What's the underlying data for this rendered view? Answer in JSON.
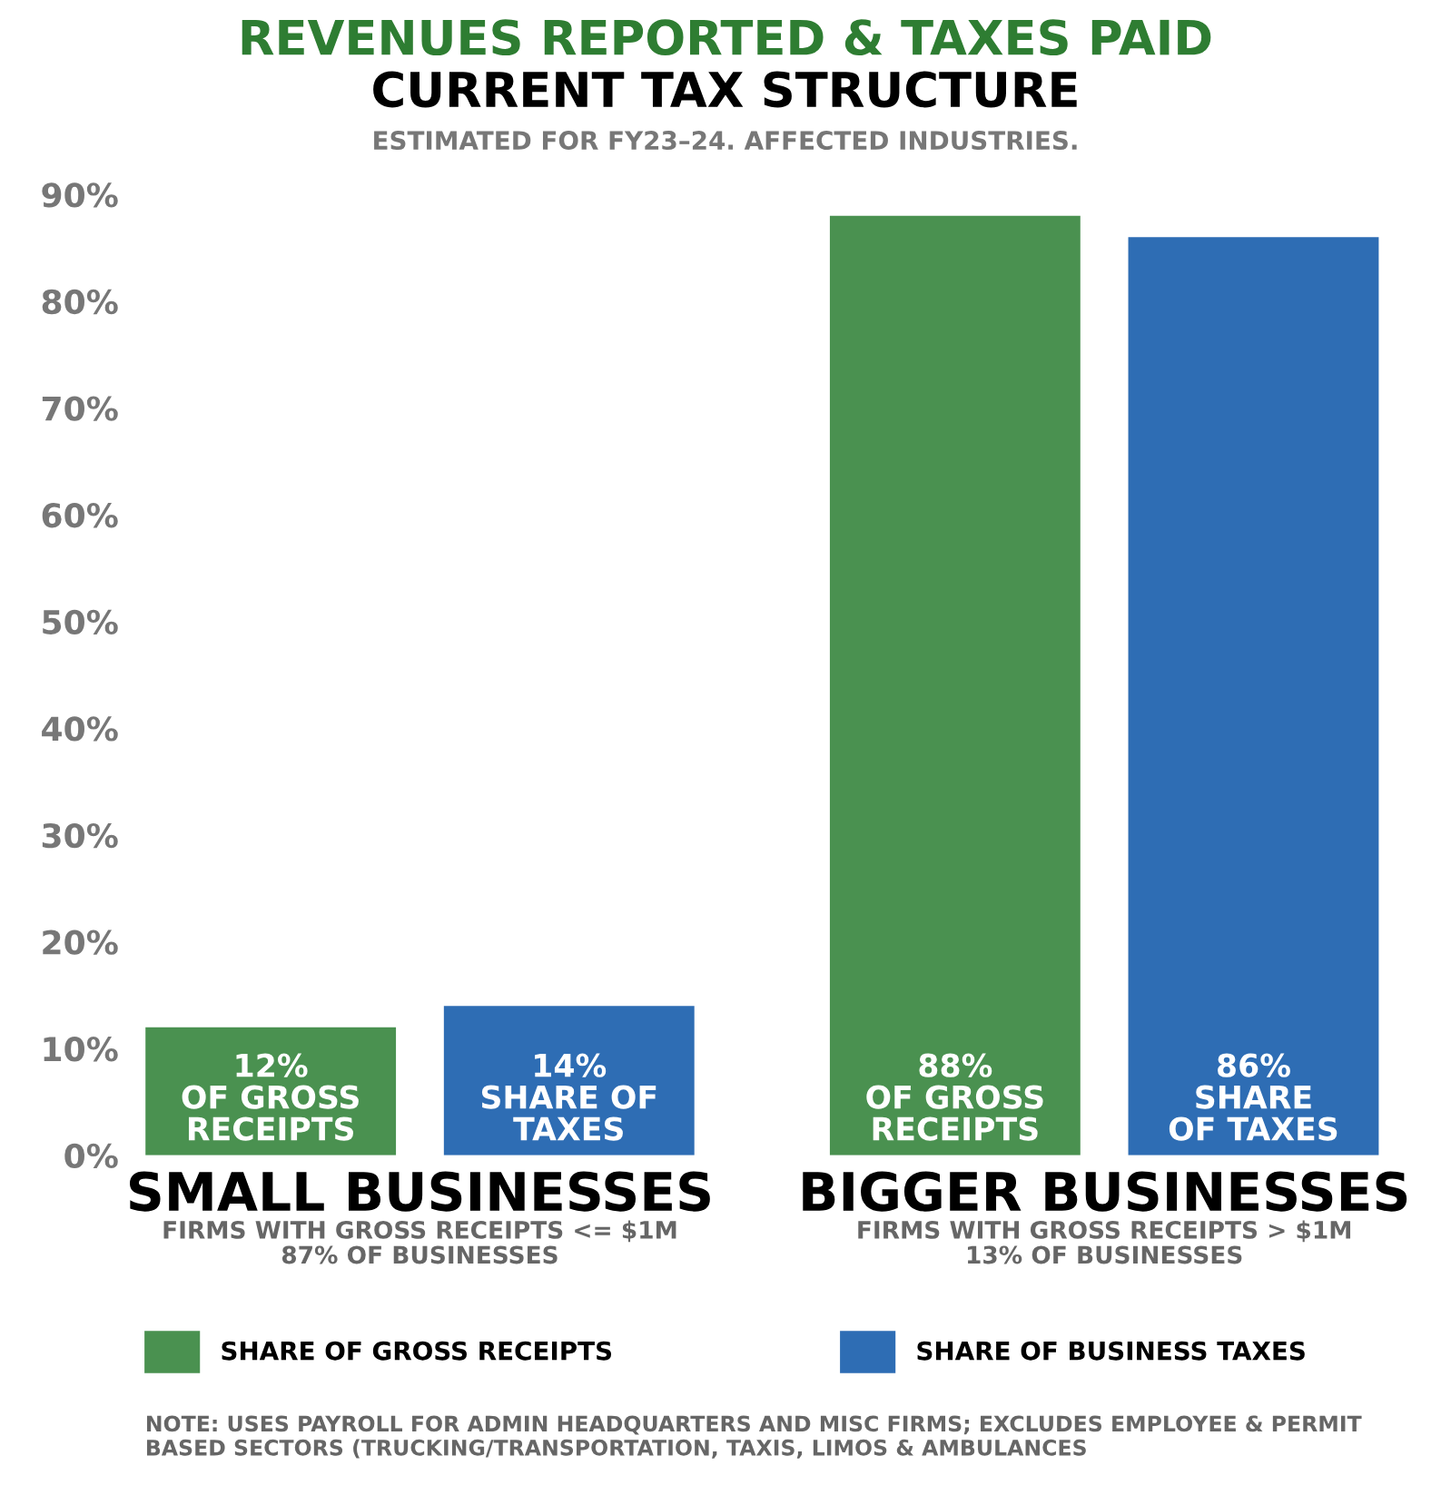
{
  "chart_data": {
    "type": "bar",
    "title": "REVENUES REPORTED & TAXES PAID",
    "subtitle": "CURRENT TAX STRUCTURE",
    "annotations": [
      "ESTIMATED FOR FY23–24. AFFECTED INDUSTRIES.",
      "FIRMS WITH GROSS RECEIPTS <= $1M\n87% OF BUSINESSES",
      "FIRMS WITH GROSS RECEIPTS > $1M\n13% OF BUSINESSES",
      "NOTE: USES PAYROLL FOR ADMIN HEADQUARTERS AND MISC FIRMS; EXCLUDES EMPLOYEE & PERMIT BASED SECTORS (TRUCKING/TRANSPORTATION, TAXIS, LIMOS & AMBULANCES"
    ],
    "categories": [
      "SMALL BUSINESSES",
      "BIGGER BUSINESSES"
    ],
    "series": [
      {
        "name": "SHARE OF GROSS RECEIPTS",
        "color": "#4a9150",
        "values": [
          12,
          88
        ],
        "value_labels": [
          "12%\nOF GROSS\nRECEIPTS",
          "88%\nOF GROSS\nRECEIPTS"
        ]
      },
      {
        "name": "SHARE OF BUSINESS TAXES",
        "color": "#2e6db4",
        "values": [
          14,
          86
        ],
        "value_labels": [
          "14%\nSHARE OF\nTAXES",
          "86%\nSHARE\nOF TAXES"
        ]
      }
    ],
    "ylim": [
      0,
      90
    ],
    "yticks": [
      {
        "value": 0,
        "label": "0%"
      },
      {
        "value": 10,
        "label": "10%"
      },
      {
        "value": 20,
        "label": "20%"
      },
      {
        "value": 30,
        "label": "30%"
      },
      {
        "value": 40,
        "label": "40%"
      },
      {
        "value": 50,
        "label": "50%"
      },
      {
        "value": 60,
        "label": "60%"
      },
      {
        "value": 70,
        "label": "70%"
      },
      {
        "value": 80,
        "label": "80%"
      },
      {
        "value": 90,
        "label": "90%"
      }
    ],
    "grid": false,
    "legend": "bottom"
  }
}
